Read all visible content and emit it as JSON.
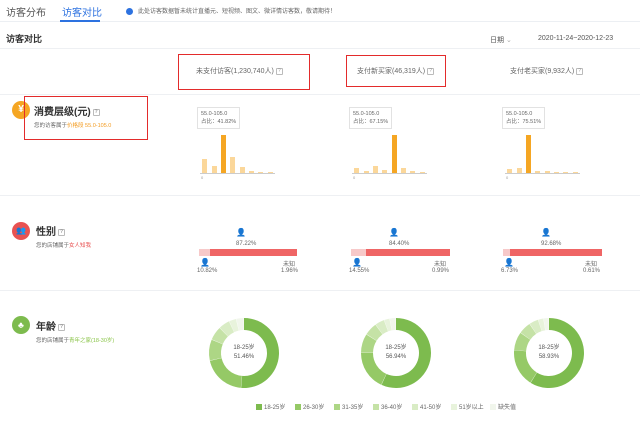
{
  "tabs": [
    {
      "label": "访客分布",
      "active": false
    },
    {
      "label": "访客对比",
      "active": true
    }
  ],
  "notice": "此处访客数据暂未统计直播元、短视频、图文、微详情访客数，敬请期待！",
  "section_title": "访客对比",
  "date": {
    "granularity": "日期",
    "range": "2020-11-24~2020-12-23"
  },
  "columns": [
    {
      "label": "未支付访客(1,230,740人)",
      "highlighted": true
    },
    {
      "label": "支付新买家(46,319人)",
      "highlighted": true
    },
    {
      "label": "支付老买家(9,932人)",
      "highlighted": false
    }
  ],
  "rows": {
    "price": {
      "title": "消费层级(元)",
      "subtitle_prefix": "您的访客属于",
      "subtitle_value": "价格段 55.0-105.0",
      "icon": "yen-icon",
      "color": "#f5a623",
      "charts": [
        {
          "range": "55.0-105.0",
          "ratio": "占比：41.82%",
          "tick": "0",
          "values": [
            0.35,
            0.18,
            0.95,
            0.4,
            0.15,
            0.05,
            0.03,
            0.02
          ]
        },
        {
          "range": "55.0-105.0",
          "ratio": "占比：67.15%",
          "tick": "0",
          "values": [
            0.12,
            0.06,
            0.18,
            0.08,
            0.95,
            0.12,
            0.04,
            0.03
          ]
        },
        {
          "range": "55.0-105.0",
          "ratio": "占比：75.51%",
          "tick": "0",
          "values": [
            0.1,
            0.12,
            0.95,
            0.05,
            0.04,
            0.03,
            0.02,
            0.02
          ]
        }
      ]
    },
    "gender": {
      "title": "性别",
      "subtitle_prefix": "您的店铺属于",
      "subtitle_value": "女人知我",
      "icon": "people-icon",
      "color": "#e85252",
      "charts": [
        {
          "female": "87.22%",
          "male": "10.82%",
          "unknown_label": "未知",
          "unknown": "1.96%",
          "female_frac": 0.8722,
          "male_frac": 0.1082
        },
        {
          "female": "84.40%",
          "male": "14.55%",
          "unknown_label": "未知",
          "unknown": "0.99%",
          "female_frac": 0.844,
          "male_frac": 0.1455
        },
        {
          "female": "92.68%",
          "male": "6.73%",
          "unknown_label": "未知",
          "unknown": "0.61%",
          "female_frac": 0.9268,
          "male_frac": 0.0673
        }
      ]
    },
    "age": {
      "title": "年龄",
      "subtitle_prefix": "您的店铺属于",
      "subtitle_value": "青年之家(18-30岁)",
      "icon": "age-icon",
      "color": "#7dbb4e",
      "charts": [
        {
          "center_label": "18-25岁",
          "center_value": "51.46%",
          "values": [
            51.46,
            20.1,
            9.8,
            6.5,
            5.2,
            3.4,
            3.54
          ]
        },
        {
          "center_label": "18-25岁",
          "center_value": "56.94%",
          "values": [
            56.94,
            18.2,
            8.9,
            6.1,
            4.4,
            2.6,
            2.86
          ]
        },
        {
          "center_label": "18-25岁",
          "center_value": "58.93%",
          "values": [
            58.93,
            17.4,
            8.6,
            5.8,
            4.3,
            2.5,
            2.47
          ]
        }
      ]
    }
  },
  "legend": [
    {
      "label": "18-25岁",
      "color": "#7dbb4e"
    },
    {
      "label": "26-30岁",
      "color": "#95c966"
    },
    {
      "label": "31-35岁",
      "color": "#add685"
    },
    {
      "label": "36-40岁",
      "color": "#c5e2a6"
    },
    {
      "label": "41-50岁",
      "color": "#d9ecc5"
    },
    {
      "label": "51岁以上",
      "color": "#e8f3dc"
    },
    {
      "label": "缺失值",
      "color": "#f1f6ec"
    }
  ]
}
